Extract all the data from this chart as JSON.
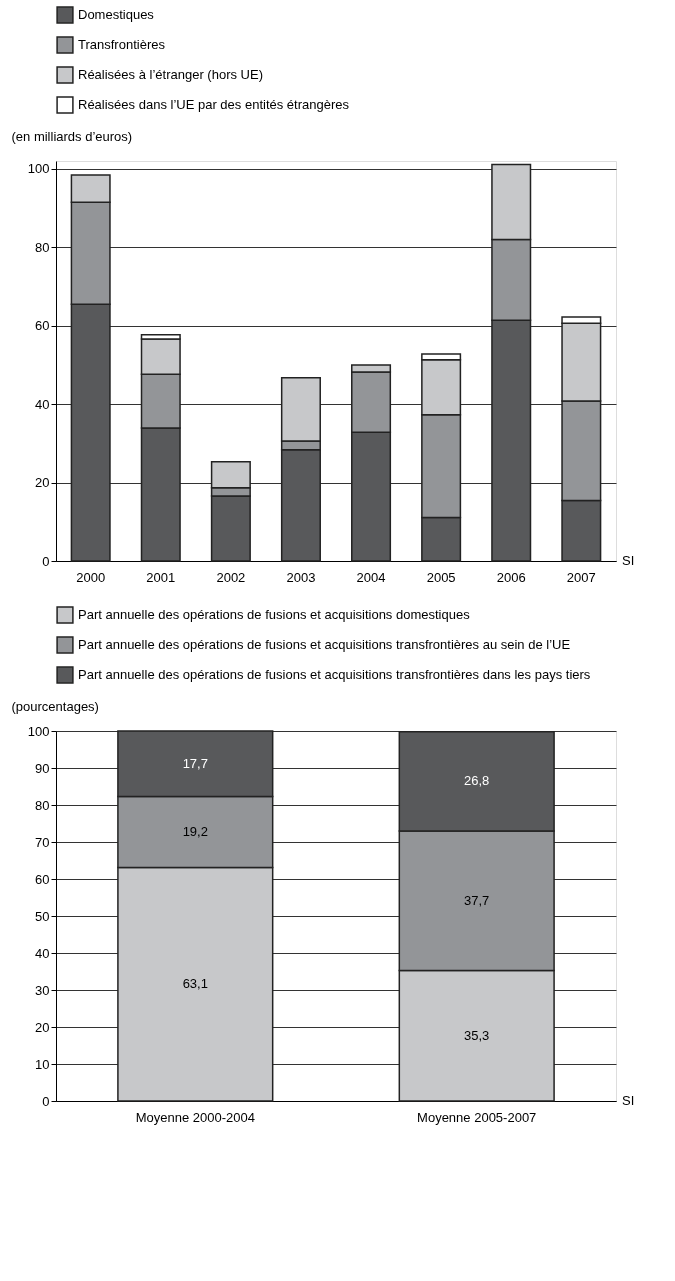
{
  "chart_data": [
    {
      "type": "bar",
      "stacked": true,
      "ylabel": "(en milliards d’euros)",
      "categories": [
        "2000",
        "2001",
        "2002",
        "2003",
        "2004",
        "2005",
        "2006",
        "2007"
      ],
      "series": [
        {
          "name": "Domestiques",
          "color": "#58595b",
          "values": [
            65.5,
            33.9,
            16.6,
            28.4,
            32.8,
            11.1,
            61.4,
            15.4
          ]
        },
        {
          "name": "Transfrontières",
          "color": "#939598",
          "values": [
            26.0,
            13.7,
            2.1,
            2.2,
            15.4,
            26.2,
            20.6,
            25.4
          ]
        },
        {
          "name": "Réalisées à l’étranger (hors UE)",
          "color": "#c7c8ca",
          "values": [
            6.9,
            9.0,
            6.6,
            16.1,
            1.8,
            14.0,
            19.1,
            19.8
          ]
        },
        {
          "name": "Réalisées dans l’UE par des entités étrangères",
          "color": "#ffffff",
          "values": [
            null,
            1.1,
            null,
            null,
            null,
            1.5,
            null,
            1.6
          ]
        }
      ],
      "ylim": [
        0,
        102
      ],
      "yticks": [
        0,
        20,
        40,
        60,
        80,
        100
      ],
      "grid": "y",
      "legend": "top",
      "annotations": [
        "SI"
      ]
    },
    {
      "type": "bar",
      "stacked": true,
      "ylabel": "(pourcentages)",
      "categories": [
        "Moyenne 2000-2004",
        "Moyenne 2005-2007"
      ],
      "series": [
        {
          "name": "Part annuelle des opérations de fusions et acquisitions domestiques",
          "color": "#c7c8ca",
          "values": [
            63.1,
            35.3
          ],
          "value_labels": [
            "63,1",
            "35,3"
          ]
        },
        {
          "name": "Part annuelle des opérations de fusions et acquisitions transfrontières au sein de l’UE",
          "color": "#939598",
          "values": [
            19.2,
            37.7
          ],
          "value_labels": [
            "19,2",
            "37,7"
          ]
        },
        {
          "name": "Part annuelle des opérations de fusions et acquisitions transfrontières dans les pays tiers",
          "color": "#58595b",
          "values": [
            17.7,
            26.8
          ],
          "value_labels": [
            "17,7",
            "26,8"
          ]
        }
      ],
      "ylim": [
        0,
        100
      ],
      "yticks": [
        0,
        10,
        20,
        30,
        40,
        50,
        60,
        70,
        80,
        90,
        100
      ],
      "grid": "y",
      "legend": "top",
      "annotations": [
        "SI"
      ]
    }
  ]
}
